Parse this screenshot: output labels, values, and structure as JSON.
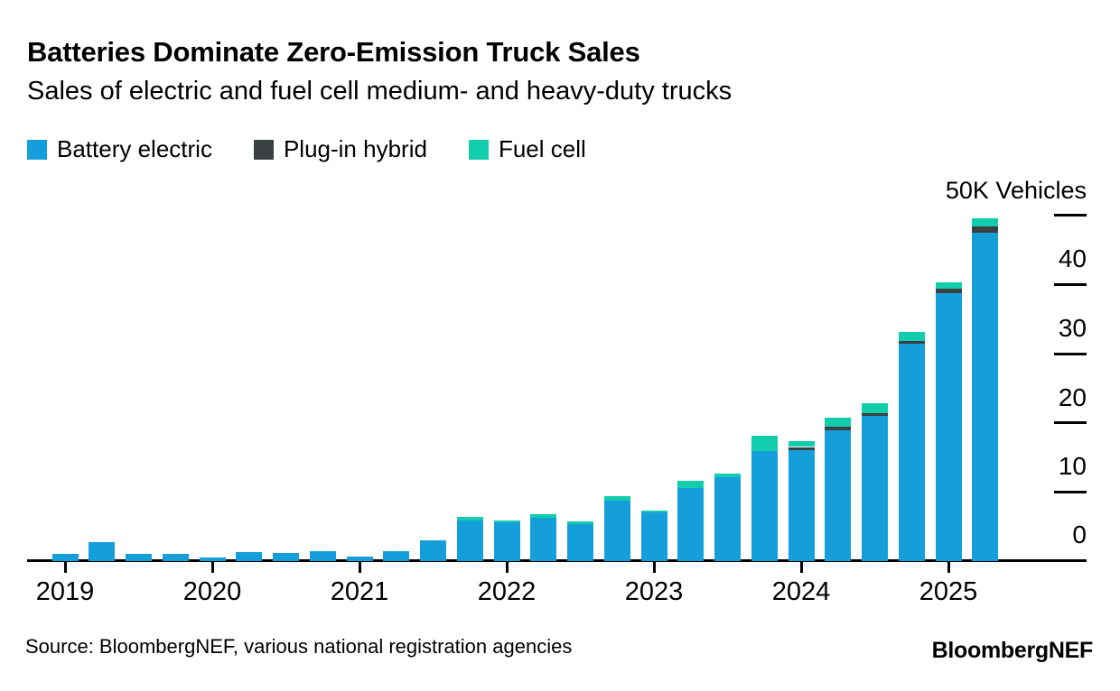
{
  "header": {
    "title": "Batteries Dominate Zero-Emission Truck Sales",
    "subtitle": "Sales of electric and fuel cell medium- and heavy-duty trucks"
  },
  "legend": [
    {
      "label": "Battery electric",
      "color": "#149fdb"
    },
    {
      "label": "Plug-in hybrid",
      "color": "#3b4043"
    },
    {
      "label": "Fuel cell",
      "color": "#12cdac"
    }
  ],
  "chart_data": {
    "type": "bar",
    "stacked": true,
    "title": "Batteries Dominate Zero-Emission Truck Sales",
    "subtitle": "Sales of electric and fuel cell medium- and heavy-duty trucks",
    "unit": "thousand vehicles",
    "x": [
      "2019 Q1",
      "2019 Q2",
      "2019 Q3",
      "2019 Q4",
      "2020 Q1",
      "2020 Q2",
      "2020 Q3",
      "2020 Q4",
      "2021 Q1",
      "2021 Q2",
      "2021 Q3",
      "2021 Q4",
      "2022 Q1",
      "2022 Q2",
      "2022 Q3",
      "2022 Q4",
      "2023 Q1",
      "2023 Q2",
      "2023 Q3",
      "2023 Q4",
      "2024 Q1",
      "2024 Q2",
      "2024 Q3",
      "2024 Q4",
      "2025 Q1",
      "2025 Q2"
    ],
    "series": [
      {
        "name": "Battery electric",
        "color": "#149fdb",
        "values": [
          1.1,
          2.7,
          1.1,
          1.0,
          0.5,
          1.3,
          1.2,
          1.5,
          0.7,
          1.5,
          3.0,
          5.9,
          5.6,
          6.3,
          5.4,
          8.8,
          7.0,
          10.6,
          12.1,
          15.9,
          16.0,
          18.9,
          21.0,
          31.4,
          38.8,
          47.5
        ]
      },
      {
        "name": "Plug-in hybrid",
        "color": "#3b4043",
        "values": [
          0,
          0,
          0,
          0,
          0,
          0,
          0,
          0,
          0,
          0,
          0,
          0,
          0,
          0,
          0,
          0,
          0,
          0,
          0,
          0,
          0.5,
          0.5,
          0.45,
          0.5,
          0.55,
          0.9
        ]
      },
      {
        "name": "Fuel cell",
        "color": "#12cdac",
        "values": [
          0,
          0,
          0,
          0,
          0,
          0,
          0,
          0,
          0,
          0,
          0,
          0.5,
          0.3,
          0.5,
          0.4,
          0.6,
          0.35,
          1.0,
          0.6,
          2.2,
          0.8,
          1.4,
          1.4,
          1.3,
          1.0,
          1.2
        ]
      }
    ],
    "xlabel": "",
    "ylabel": "50K Vehicles",
    "ylim": [
      0,
      51
    ],
    "grid": false,
    "legend_position": "top-left",
    "y_axis": {
      "side": "right",
      "top_label": "50K Vehicles",
      "tick_values": [
        0,
        10,
        20,
        30,
        40
      ],
      "tick_labels": [
        "0",
        "10",
        "20",
        "30",
        "40"
      ],
      "dash_values": [
        10,
        20,
        30,
        40,
        50
      ]
    },
    "x_axis": {
      "year_labels": [
        "2019",
        "2020",
        "2021",
        "2022",
        "2023",
        "2024",
        "2025"
      ]
    }
  },
  "footer": {
    "source": "Source: BloombergNEF, various national registration agencies",
    "logo": "BloombergNEF"
  }
}
